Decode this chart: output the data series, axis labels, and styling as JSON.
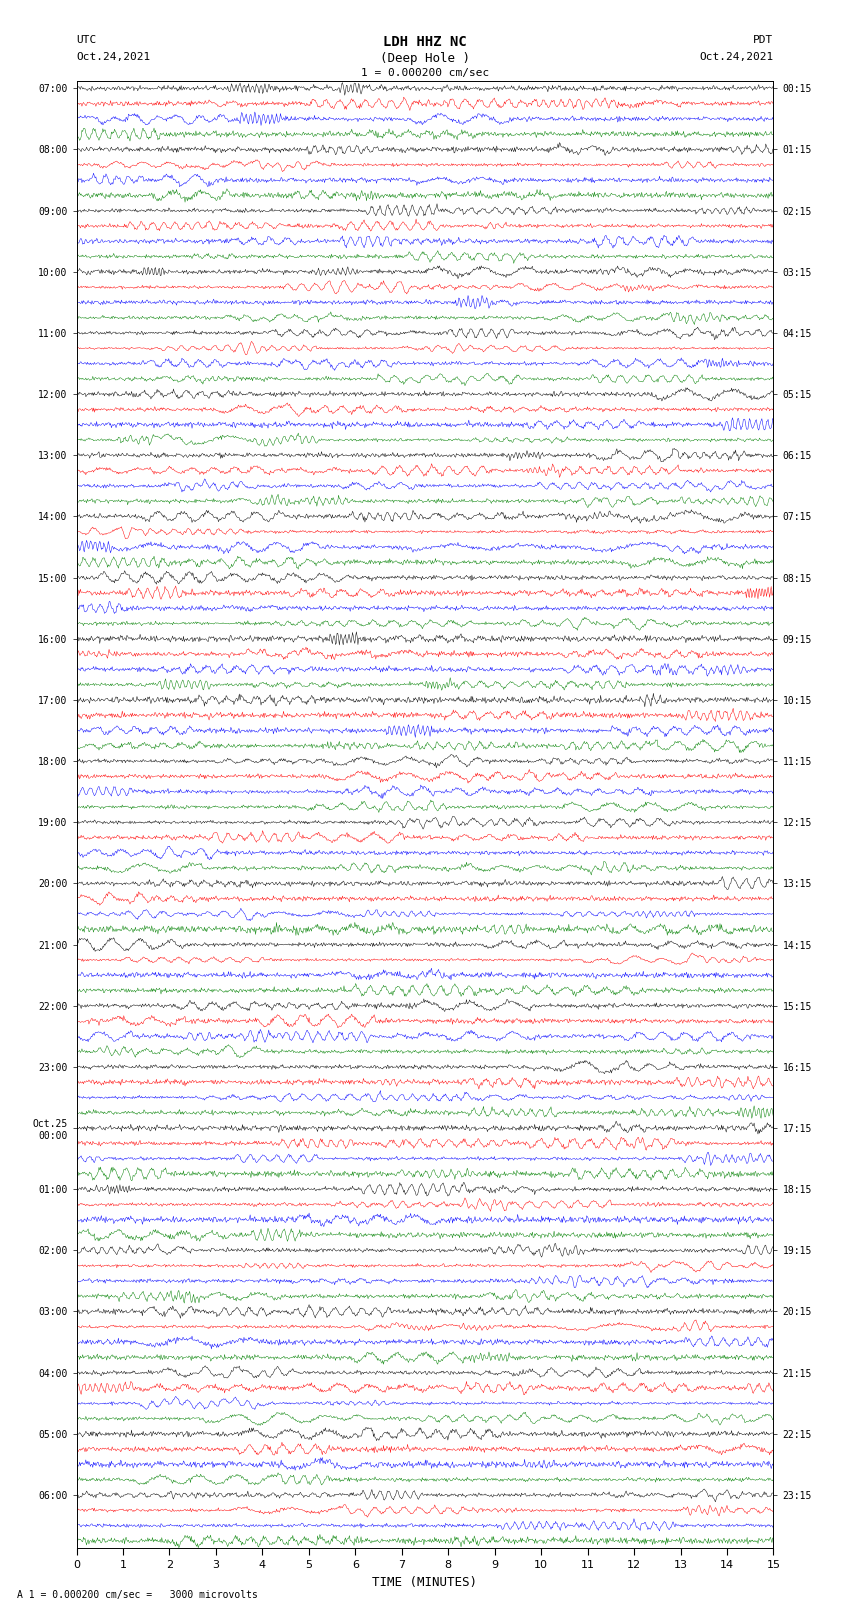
{
  "title_line1": "LDH HHZ NC",
  "title_line2": "(Deep Hole )",
  "scale_text": "1 = 0.000200 cm/sec",
  "bottom_note": "A 1 = 0.000200 cm/sec =   3000 microvolts",
  "left_date": "Oct.24,2021",
  "right_date": "Oct.24,2021",
  "left_label": "UTC",
  "right_label": "PDT",
  "xlabel": "TIME (MINUTES)",
  "left_times": [
    "07:00",
    "08:00",
    "09:00",
    "10:00",
    "11:00",
    "12:00",
    "13:00",
    "14:00",
    "15:00",
    "16:00",
    "17:00",
    "18:00",
    "19:00",
    "20:00",
    "21:00",
    "22:00",
    "23:00",
    "Oct.25\n00:00",
    "01:00",
    "02:00",
    "03:00",
    "04:00",
    "05:00",
    "06:00"
  ],
  "right_times": [
    "00:15",
    "01:15",
    "02:15",
    "03:15",
    "04:15",
    "05:15",
    "06:15",
    "07:15",
    "08:15",
    "09:15",
    "10:15",
    "11:15",
    "12:15",
    "13:15",
    "14:15",
    "15:15",
    "16:15",
    "17:15",
    "18:15",
    "19:15",
    "20:15",
    "21:15",
    "22:15",
    "23:15"
  ],
  "trace_colors": [
    "black",
    "red",
    "blue",
    "green"
  ],
  "n_rows": 24,
  "traces_per_row": 4,
  "points_per_trace": 900,
  "xmin": 0,
  "xmax": 15,
  "amplitude_scale": 0.45,
  "bg_color": "white",
  "seed": 42
}
